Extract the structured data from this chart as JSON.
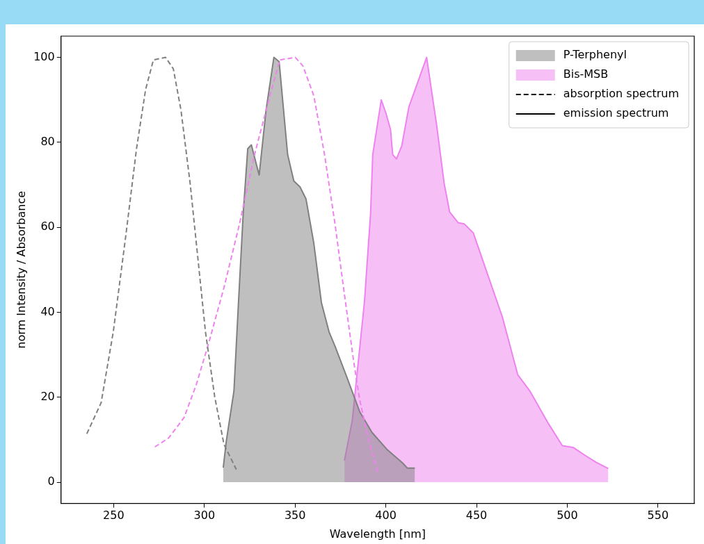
{
  "chart_data": {
    "type": "line",
    "xlabel": "Wavelength [nm]",
    "ylabel": "norm Intensity / Absorbance",
    "xlim": [
      221,
      570
    ],
    "xticks": [
      250,
      300,
      350,
      400,
      450,
      500,
      550
    ],
    "ylim": [
      -5,
      105
    ],
    "yticks": [
      0,
      20,
      40,
      60,
      80,
      100
    ],
    "grid": false,
    "legend": "top right",
    "marker": "none",
    "series": [
      {
        "name": "P-Terphenyl",
        "type": "area",
        "color": "#808080",
        "line_style": "solid",
        "x": [
          310.4,
          312.1,
          316.3,
          318.8,
          321.4,
          323.9,
          325.9,
          330.2,
          334.0,
          338.3,
          341.2,
          345.9,
          349.3,
          352.7,
          356.0,
          360.3,
          364.5,
          368.7,
          372.1,
          378.9,
          385.6,
          392.4,
          400.9,
          409.3,
          411.9,
          416.0
        ],
        "values": [
          3.4,
          9.7,
          21.5,
          42.3,
          63.2,
          78.5,
          79.4,
          72.3,
          87.6,
          100,
          99.0,
          77.1,
          70.9,
          69.5,
          66.7,
          56.3,
          42.3,
          35.4,
          31.9,
          24.3,
          16.6,
          11.7,
          7.6,
          4.5,
          3.3,
          3.3
        ]
      },
      {
        "name": "Bis-MSB",
        "type": "area",
        "color": "#ee82ee",
        "line_style": "solid",
        "x": [
          377.2,
          381.5,
          388.2,
          391.6,
          392.8,
          397.5,
          400.1,
          402.6,
          403.8,
          405.9,
          408.8,
          412.7,
          422.5,
          428.0,
          432.2,
          435.2,
          439.8,
          443.2,
          448.2,
          455.8,
          464.3,
          472.7,
          479.5,
          489.6,
          497.3,
          503.2,
          509.9,
          515.9,
          522.6
        ],
        "values": [
          5.1,
          14.5,
          42.3,
          63.2,
          77.1,
          90.0,
          86.8,
          83.0,
          77.1,
          76.1,
          79.2,
          88.3,
          100,
          84.1,
          70.2,
          63.6,
          61.1,
          60.8,
          58.7,
          49.3,
          38.8,
          25.3,
          21.4,
          13.8,
          8.6,
          8.2,
          6.3,
          4.7,
          3.2
        ]
      },
      {
        "type": "line",
        "color": "#808080",
        "line_style": "dashed",
        "x": [
          235.2,
          243.1,
          249.8,
          256.6,
          262.6,
          267.6,
          271.9,
          278.6,
          282.9,
          287.1,
          292.2,
          296.4,
          300.6,
          305.7,
          310.8,
          317.6
        ],
        "values": [
          11.4,
          18.7,
          35.4,
          57.7,
          78.5,
          92.4,
          99.4,
          100,
          97.3,
          87.6,
          70.2,
          52.8,
          35.4,
          20.1,
          8.9,
          3.0
        ]
      },
      {
        "type": "line",
        "color": "#ee82ee",
        "line_style": "dashed",
        "x": [
          272.7,
          280.3,
          288.8,
          295.5,
          302.3,
          310.8,
          319.2,
          327.7,
          336.2,
          341.6,
          350.1,
          354.3,
          360.3,
          366.2,
          372.1,
          377.1,
          382.3,
          385.6,
          390.7,
          395.8
        ],
        "values": [
          8.3,
          10.4,
          15.2,
          22.9,
          32.6,
          45.8,
          60.5,
          77.2,
          91.1,
          99.4,
          100,
          98.0,
          91.0,
          77.2,
          60.5,
          44.5,
          28.4,
          19.4,
          9.7,
          2.0
        ]
      },
      {
        "name": "absorption spectrum",
        "type": "line",
        "color": "#000000",
        "line_style": "dashed"
      },
      {
        "name": "emission spectrum",
        "type": "line",
        "color": "#000000",
        "line_style": "solid"
      }
    ]
  }
}
